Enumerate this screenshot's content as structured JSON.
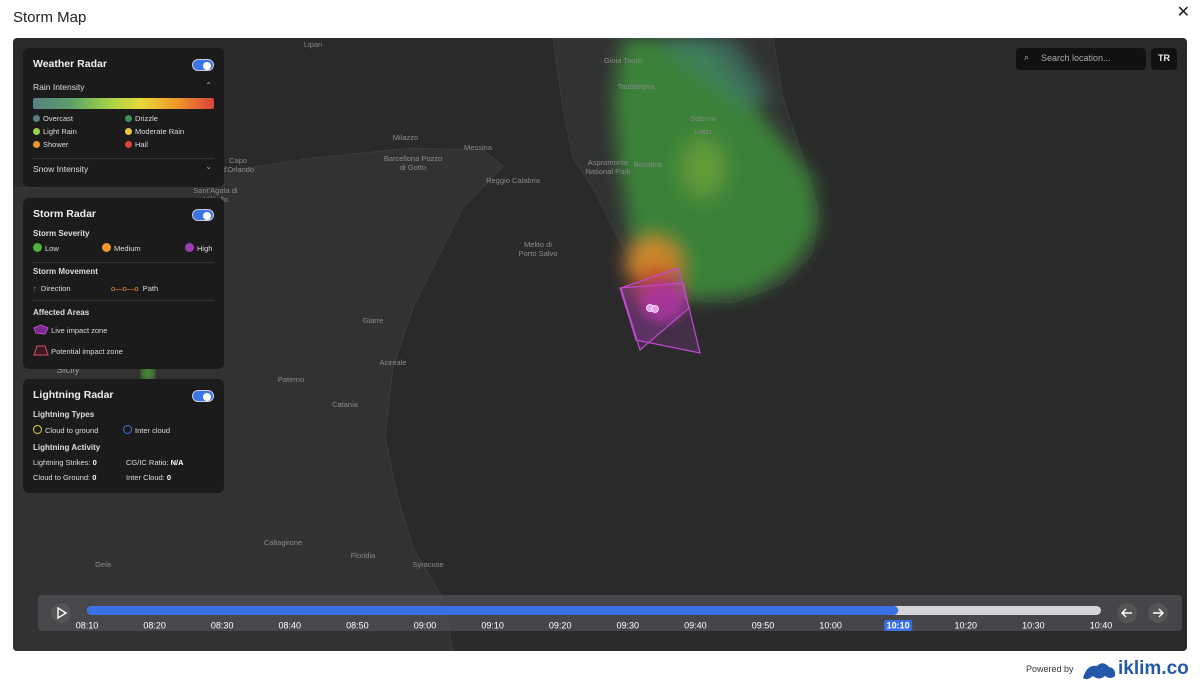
{
  "header": {
    "title": "Storm Map"
  },
  "map_labels": [
    "Lipari",
    "Gioia Tauro",
    "Taurianova",
    "Siderno",
    "Locri",
    "Milazzo",
    "Barcellona Pozzo di Gotto",
    "Messina",
    "Reggio Calabria",
    "Aspromonte National Park",
    "Bovalino",
    "Capo d'Orlando",
    "Sant'Agata di Militello",
    "Melito di Porto Salvo",
    "Giarre",
    "Acireale",
    "Paterno",
    "Catania",
    "Caltagirone",
    "Floridia",
    "Gela",
    "Syracuse",
    "Sicily"
  ],
  "weather_panel": {
    "title": "Weather Radar",
    "rain_title": "Rain Intensity",
    "rain_items": [
      "Overcast",
      "Drizzle",
      "Light Rain",
      "Moderate Rain",
      "Shower",
      "Hail"
    ],
    "snow_title": "Snow Intensity"
  },
  "storm_panel": {
    "title": "Storm Radar",
    "severity_title": "Storm Severity",
    "severity_items": [
      "Low",
      "Medium",
      "High"
    ],
    "movement_title": "Storm Movement",
    "movement_items": [
      "Direction",
      "Path"
    ],
    "areas_title": "Affected Areas",
    "areas_items": [
      "Live impact zone",
      "Potential impact zone"
    ]
  },
  "lightning_panel": {
    "title": "Lightning Radar",
    "types_title": "Lightning Types",
    "types_items": [
      "Cloud to ground",
      "Inter cloud"
    ],
    "activity_title": "Lightning Activity",
    "stats": [
      {
        "label": "Lightning Strikes:",
        "value": 0
      },
      {
        "label": "CG/IC Ratio:",
        "value": "N/A"
      },
      {
        "label": "Cloud to Ground:",
        "value": 0
      },
      {
        "label": "Inter Cloud:",
        "value": 0
      }
    ]
  },
  "search": {
    "placeholder": "Search location...",
    "language": "TR"
  },
  "timeline": {
    "times": [
      "08:10",
      "08:20",
      "08:30",
      "08:40",
      "08:50",
      "09:00",
      "09:10",
      "09:20",
      "09:30",
      "09:40",
      "09:50",
      "10:00",
      "10:10",
      "10:20",
      "10:30",
      "10:40"
    ]
  },
  "footer": {
    "powered_by": "Powered by",
    "brand": "iklim.co"
  }
}
